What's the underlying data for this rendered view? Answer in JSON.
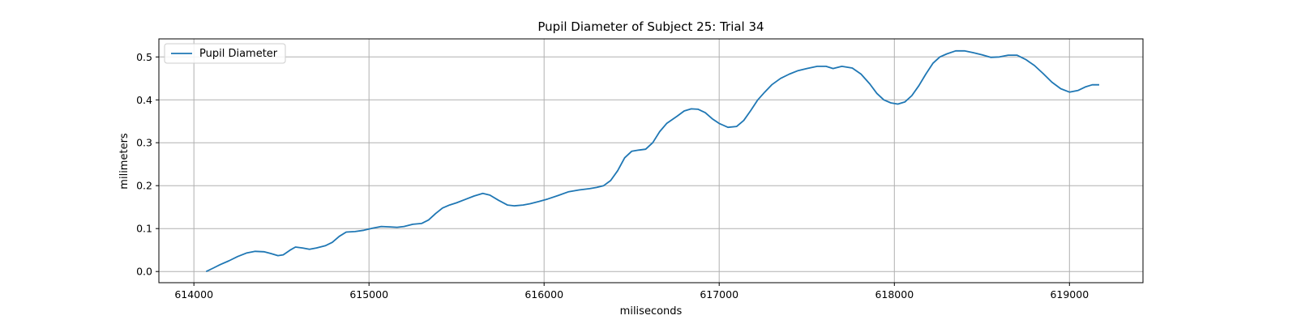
{
  "chart_data": {
    "type": "line",
    "title": "Pupil Diameter of Subject 25: Trial 34",
    "xlabel": "miliseconds",
    "ylabel": "milimeters",
    "xlim": [
      613800,
      619420
    ],
    "ylim": [
      -0.026,
      0.542
    ],
    "xticks": [
      614000,
      615000,
      616000,
      617000,
      618000,
      619000
    ],
    "yticks": [
      0.0,
      0.1,
      0.2,
      0.3,
      0.4,
      0.5
    ],
    "ytick_labels": [
      "0.0",
      "0.1",
      "0.2",
      "0.3",
      "0.4",
      "0.5"
    ],
    "grid": true,
    "legend": "upper-left",
    "series": [
      {
        "name": "Pupil Diameter",
        "color": "#1f77b4",
        "x": [
          614070,
          614110,
          614150,
          614200,
          614250,
          614300,
          614350,
          614400,
          614440,
          614480,
          614510,
          614550,
          614580,
          614620,
          614660,
          614700,
          614750,
          614790,
          614830,
          614870,
          614920,
          614970,
          615020,
          615070,
          615120,
          615160,
          615200,
          615250,
          615300,
          615340,
          615380,
          615420,
          615460,
          615500,
          615550,
          615600,
          615650,
          615690,
          615740,
          615790,
          615830,
          615880,
          615920,
          615970,
          616020,
          616080,
          616140,
          616200,
          616260,
          616300,
          616340,
          616380,
          616420,
          616460,
          616500,
          616540,
          616580,
          616620,
          616660,
          616700,
          616760,
          616800,
          616840,
          616880,
          616920,
          616960,
          617000,
          617050,
          617100,
          617140,
          617180,
          617220,
          617260,
          617300,
          617350,
          617400,
          617450,
          617500,
          617560,
          617610,
          617650,
          617700,
          617760,
          617810,
          617860,
          617900,
          617940,
          617980,
          618020,
          618060,
          618100,
          618140,
          618180,
          618220,
          618260,
          618300,
          618350,
          618400,
          618450,
          618500,
          618550,
          618600,
          618650,
          618700,
          618750,
          618800,
          618850,
          618900,
          618950,
          619000,
          619050,
          619090,
          619130,
          619170
        ],
        "y": [
          0.0,
          0.008,
          0.016,
          0.025,
          0.035,
          0.043,
          0.047,
          0.046,
          0.042,
          0.037,
          0.039,
          0.05,
          0.057,
          0.055,
          0.052,
          0.055,
          0.06,
          0.068,
          0.082,
          0.092,
          0.093,
          0.096,
          0.101,
          0.105,
          0.104,
          0.103,
          0.105,
          0.11,
          0.112,
          0.12,
          0.135,
          0.148,
          0.155,
          0.16,
          0.168,
          0.176,
          0.182,
          0.178,
          0.166,
          0.155,
          0.153,
          0.155,
          0.158,
          0.163,
          0.169,
          0.177,
          0.186,
          0.19,
          0.193,
          0.196,
          0.2,
          0.212,
          0.235,
          0.265,
          0.28,
          0.283,
          0.285,
          0.3,
          0.326,
          0.345,
          0.362,
          0.374,
          0.379,
          0.378,
          0.37,
          0.356,
          0.345,
          0.336,
          0.338,
          0.352,
          0.375,
          0.4,
          0.418,
          0.435,
          0.45,
          0.46,
          0.468,
          0.473,
          0.478,
          0.478,
          0.473,
          0.478,
          0.474,
          0.46,
          0.437,
          0.415,
          0.4,
          0.393,
          0.39,
          0.395,
          0.41,
          0.433,
          0.46,
          0.485,
          0.5,
          0.507,
          0.514,
          0.514,
          0.51,
          0.505,
          0.499,
          0.5,
          0.504,
          0.504,
          0.494,
          0.48,
          0.461,
          0.441,
          0.426,
          0.418,
          0.422,
          0.43,
          0.435,
          0.435
        ]
      }
    ]
  }
}
